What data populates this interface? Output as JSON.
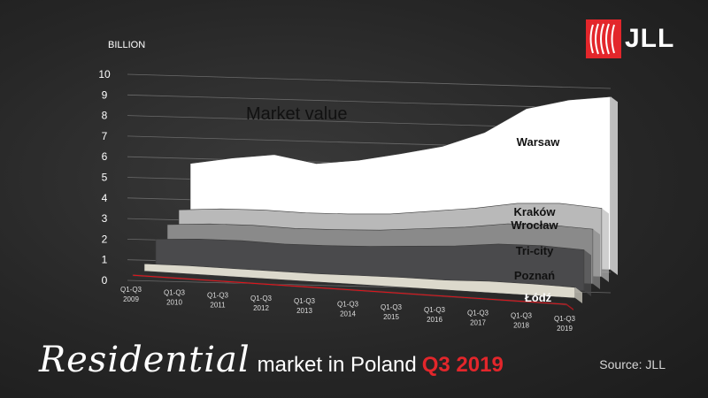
{
  "brand": {
    "logo_text": "JLL",
    "accent": "#e3262b"
  },
  "footer": {
    "title_script": "Residential",
    "title_rest": "market in Poland",
    "title_period": "Q3 2019",
    "source": "Source: JLL"
  },
  "chart_data": {
    "type": "area",
    "stacked": true,
    "style": "3d-layered",
    "annotation": "Market value",
    "ylabel": "BILLION",
    "ylim": [
      0,
      10
    ],
    "yticks": [
      0,
      1,
      2,
      3,
      4,
      5,
      6,
      7,
      8,
      9,
      10
    ],
    "categories": [
      "Q1-Q3 2009",
      "Q1-Q3 2010",
      "Q1-Q3 2011",
      "Q1-Q3 2012",
      "Q1-Q3 2013",
      "Q1-Q3 2014",
      "Q1-Q3 2015",
      "Q1-Q3 2016",
      "Q1-Q3 2017",
      "Q1-Q3 2018",
      "Q1-Q3 2019"
    ],
    "category_lines": [
      [
        "Q1-Q3",
        "2009"
      ],
      [
        "Q1-Q3",
        "2010"
      ],
      [
        "Q1-Q3",
        "2011"
      ],
      [
        "Q1-Q3",
        "2012"
      ],
      [
        "Q1-Q3",
        "2013"
      ],
      [
        "Q1-Q3",
        "2014"
      ],
      [
        "Q1-Q3",
        "2015"
      ],
      [
        "Q1-Q3",
        "2016"
      ],
      [
        "Q1-Q3",
        "2017"
      ],
      [
        "Q1-Q3",
        "2018"
      ],
      [
        "Q1-Q3",
        "2019"
      ]
    ],
    "series": [
      {
        "name": "Warsaw",
        "color": "#ffffff",
        "values": [
          1.9,
          2.1,
          2.3,
          2.0,
          2.2,
          2.5,
          2.7,
          3.2,
          4.1,
          4.5,
          4.9
        ]
      },
      {
        "name": "Kraków",
        "color": "#b9b9b9",
        "values": [
          0.4,
          0.4,
          0.4,
          0.4,
          0.4,
          0.4,
          0.45,
          0.5,
          0.55,
          0.6,
          0.55
        ]
      },
      {
        "name": "Wrocław",
        "color": "#8a8a8a",
        "values": [
          0.45,
          0.45,
          0.45,
          0.45,
          0.45,
          0.45,
          0.5,
          0.55,
          0.6,
          0.6,
          0.6
        ]
      },
      {
        "name": "Tri-city",
        "color": "#4a4a4c",
        "values": [
          1.1,
          1.2,
          1.25,
          1.2,
          1.25,
          1.3,
          1.4,
          1.55,
          1.7,
          1.75,
          1.7
        ]
      },
      {
        "name": "Poznań",
        "color": "#dcd9cc",
        "values": [
          0.35,
          0.4,
          0.4,
          0.4,
          0.4,
          0.45,
          0.5,
          0.5,
          0.6,
          0.6,
          0.55
        ]
      },
      {
        "name": "Łódź",
        "color": "#e0141b",
        "values": [
          0.1,
          0.1,
          0.1,
          0.1,
          0.1,
          0.1,
          0.1,
          0.1,
          0.1,
          0.1,
          0.1
        ]
      }
    ]
  }
}
